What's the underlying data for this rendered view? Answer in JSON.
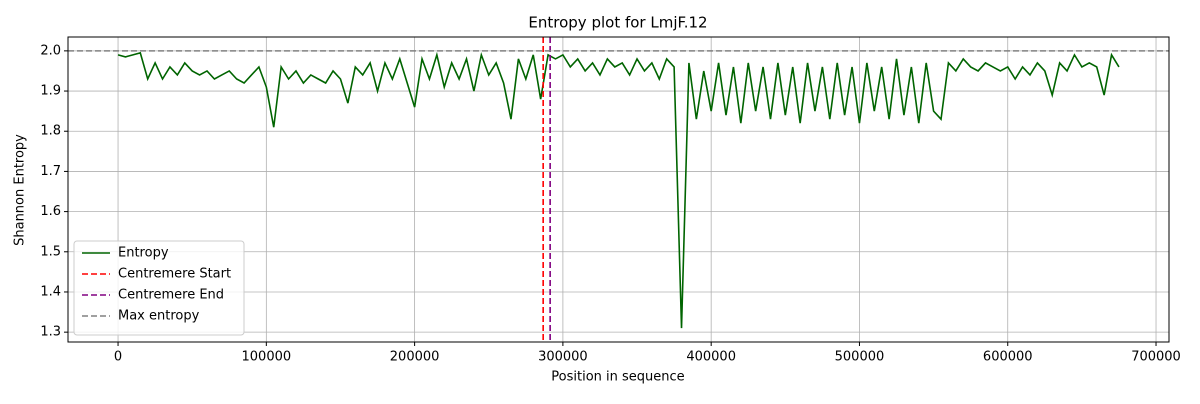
{
  "chart_data": {
    "type": "line",
    "title": "Entropy plot for LmjF.12",
    "xlabel": "Position in sequence",
    "ylabel": "Shannon Entropy",
    "x": [
      0,
      5000,
      10000,
      15000,
      20000,
      25000,
      30000,
      35000,
      40000,
      45000,
      50000,
      55000,
      60000,
      65000,
      70000,
      75000,
      80000,
      85000,
      90000,
      95000,
      100000,
      105000,
      110000,
      115000,
      120000,
      125000,
      130000,
      135000,
      140000,
      145000,
      150000,
      155000,
      160000,
      165000,
      170000,
      175000,
      180000,
      185000,
      190000,
      195000,
      200000,
      205000,
      210000,
      215000,
      220000,
      225000,
      230000,
      235000,
      240000,
      245000,
      250000,
      255000,
      260000,
      265000,
      270000,
      275000,
      280000,
      285000,
      290000,
      295000,
      300000,
      305000,
      310000,
      315000,
      320000,
      325000,
      330000,
      335000,
      340000,
      345000,
      350000,
      355000,
      360000,
      365000,
      370000,
      375000,
      380000,
      385000,
      390000,
      395000,
      400000,
      405000,
      410000,
      415000,
      420000,
      425000,
      430000,
      435000,
      440000,
      445000,
      450000,
      455000,
      460000,
      465000,
      470000,
      475000,
      480000,
      485000,
      490000,
      495000,
      500000,
      505000,
      510000,
      515000,
      520000,
      525000,
      530000,
      535000,
      540000,
      545000,
      550000,
      555000,
      560000,
      565000,
      570000,
      575000,
      580000,
      585000,
      590000,
      595000,
      600000,
      605000,
      610000,
      615000,
      620000,
      625000,
      630000,
      635000,
      640000,
      645000,
      650000,
      655000,
      660000,
      665000,
      670000,
      675000
    ],
    "series": [
      {
        "name": "Entropy",
        "color": "#006400",
        "values": [
          1.99,
          1.985,
          1.99,
          1.995,
          1.93,
          1.97,
          1.93,
          1.96,
          1.94,
          1.97,
          1.95,
          1.94,
          1.95,
          1.93,
          1.94,
          1.95,
          1.93,
          1.92,
          1.94,
          1.96,
          1.91,
          1.81,
          1.96,
          1.93,
          1.95,
          1.92,
          1.94,
          1.93,
          1.92,
          1.95,
          1.93,
          1.87,
          1.96,
          1.94,
          1.97,
          1.9,
          1.97,
          1.93,
          1.98,
          1.92,
          1.86,
          1.98,
          1.93,
          1.99,
          1.91,
          1.97,
          1.93,
          1.98,
          1.9,
          1.99,
          1.94,
          1.97,
          1.92,
          1.83,
          1.98,
          1.93,
          1.99,
          1.88,
          1.99,
          1.98,
          1.99,
          1.96,
          1.98,
          1.95,
          1.97,
          1.94,
          1.98,
          1.96,
          1.97,
          1.94,
          1.98,
          1.95,
          1.97,
          1.93,
          1.98,
          1.96,
          1.31,
          1.97,
          1.83,
          1.95,
          1.85,
          1.97,
          1.84,
          1.96,
          1.82,
          1.97,
          1.85,
          1.96,
          1.83,
          1.97,
          1.84,
          1.96,
          1.82,
          1.97,
          1.85,
          1.96,
          1.83,
          1.97,
          1.84,
          1.96,
          1.82,
          1.97,
          1.85,
          1.96,
          1.83,
          1.98,
          1.84,
          1.96,
          1.82,
          1.97,
          1.85,
          1.83,
          1.97,
          1.95,
          1.98,
          1.96,
          1.95,
          1.97,
          1.96,
          1.95,
          1.96,
          1.93,
          1.96,
          1.94,
          1.97,
          1.95,
          1.89,
          1.97,
          1.95,
          1.99,
          1.96,
          1.97,
          1.96,
          1.89,
          1.99,
          1.96
        ]
      }
    ],
    "vlines": [
      {
        "name": "Centremere Start",
        "color": "#ff0000",
        "x": 286700
      },
      {
        "name": "Centremere End",
        "color": "#800080",
        "x": 291400
      }
    ],
    "hlines": [
      {
        "name": "Max entropy",
        "color": "#808080",
        "y": 2
      }
    ],
    "xlim": [
      -33750,
      708750
    ],
    "ylim": [
      1.2755,
      2.0345
    ],
    "xticks": [
      0,
      100000,
      200000,
      300000,
      400000,
      500000,
      600000,
      700000
    ],
    "yticks": [
      1.3,
      1.4,
      1.5,
      1.6,
      1.7,
      1.8,
      1.9,
      {
        "value": 2,
        "label": "2.0"
      }
    ],
    "grid": true,
    "legend": "lower left"
  }
}
